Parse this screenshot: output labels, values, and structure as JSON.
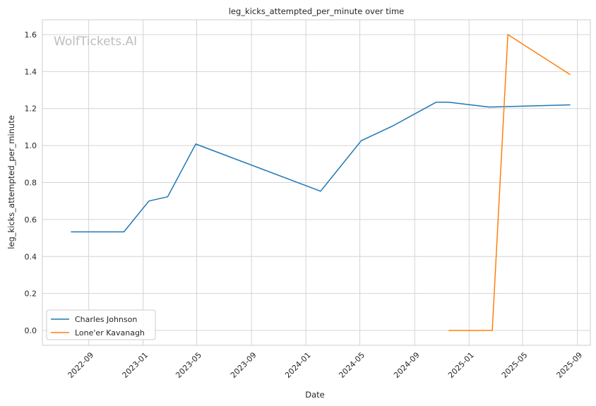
{
  "watermark": "WolfTickets.AI",
  "chart_data": {
    "type": "line",
    "title": "leg_kicks_attempted_per_minute over time",
    "xlabel": "Date",
    "ylabel": "leg_kicks_attempted_per_minute",
    "xlim": [
      "2022-05-20",
      "2025-09-30"
    ],
    "ylim": [
      -0.08,
      1.68
    ],
    "x_ticks": [
      "2022-09",
      "2023-01",
      "2023-05",
      "2023-09",
      "2024-01",
      "2024-05",
      "2024-09",
      "2025-01",
      "2025-05",
      "2025-09"
    ],
    "y_ticks": [
      "0.0",
      "0.2",
      "0.4",
      "0.6",
      "0.8",
      "1.0",
      "1.2",
      "1.4",
      "1.6"
    ],
    "y_tick_values": [
      0,
      0.2,
      0.4,
      0.6,
      0.8,
      1.0,
      1.2,
      1.4,
      1.6
    ],
    "grid": true,
    "legend_position": "lower-left",
    "series": [
      {
        "name": "Charles Johnson",
        "color": "#1f77b4",
        "points": [
          [
            "2022-07-23",
            0.533
          ],
          [
            "2022-11-19",
            0.533
          ],
          [
            "2023-01-14",
            0.7
          ],
          [
            "2023-02-25",
            0.723
          ],
          [
            "2023-04-29",
            1.008
          ],
          [
            "2024-02-03",
            0.753
          ],
          [
            "2024-05-04",
            1.026
          ],
          [
            "2024-07-13",
            1.105
          ],
          [
            "2024-10-19",
            1.234
          ],
          [
            "2024-11-16",
            1.234
          ],
          [
            "2025-02-15",
            1.208
          ],
          [
            "2025-08-16",
            1.22
          ]
        ]
      },
      {
        "name": "Lone'er Kavanagh",
        "color": "#ff7f0e",
        "points": [
          [
            "2024-11-16",
            0.0
          ],
          [
            "2025-02-22",
            0.0
          ],
          [
            "2025-03-29",
            1.6
          ],
          [
            "2025-08-16",
            1.383
          ]
        ]
      }
    ]
  }
}
